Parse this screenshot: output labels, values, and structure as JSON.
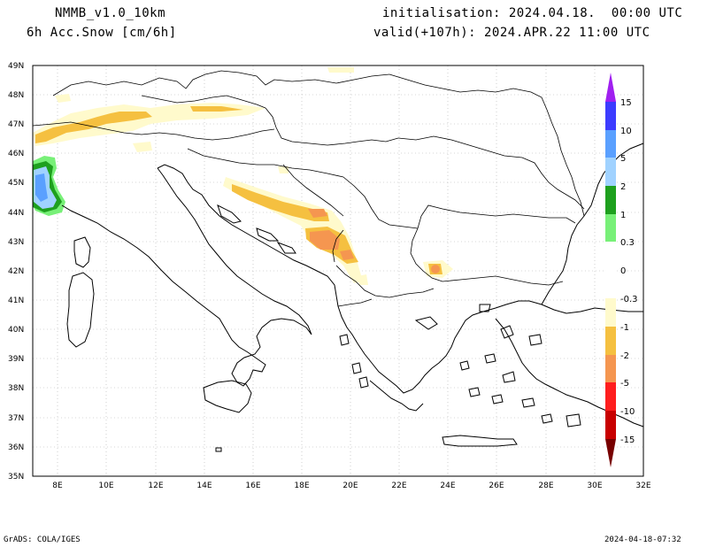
{
  "header": {
    "model": "NMMB_v1.0_10km",
    "field": "6h Acc.Snow [cm/6h]",
    "init": "initialisation: 2024.04.18.  00:00 UTC",
    "valid": "valid(+107h): 2024.APR.22 11:00 UTC"
  },
  "axes": {
    "lat_labels": [
      "49N",
      "48N",
      "47N",
      "46N",
      "45N",
      "44N",
      "43N",
      "42N",
      "41N",
      "40N",
      "39N",
      "38N",
      "37N",
      "36N",
      "35N"
    ],
    "lon_labels": [
      "8E",
      "10E",
      "12E",
      "14E",
      "16E",
      "18E",
      "20E",
      "22E",
      "24E",
      "26E",
      "28E",
      "30E",
      "32E"
    ]
  },
  "colorbar": {
    "labels": [
      "15",
      "10",
      "5",
      "2",
      "1",
      "0.3",
      "0",
      "-0.3",
      "-1",
      "-2",
      "-5",
      "-10",
      "-15"
    ],
    "colors": {
      "top_arrow": "#a020f0",
      "b10_15": "#3c3cff",
      "b5_10": "#5aa0ff",
      "b2_5": "#a0d2ff",
      "b1_2": "#1ea01e",
      "b03_1": "#78f078",
      "neutral": "#ffffff",
      "n03_1": "#fffacc",
      "n1_2": "#f5c040",
      "n2_5": "#f59650",
      "n5_10": "#ff1e1e",
      "n10_15": "#c80000",
      "bottom_arrow": "#780000"
    }
  },
  "footer": {
    "left": "GrADS: COLA/IGES",
    "right": "2024-04-18-07:32"
  }
}
